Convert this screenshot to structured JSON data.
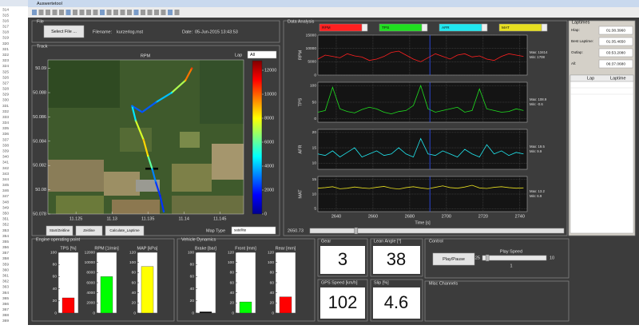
{
  "window": {
    "title": "Auswertetool"
  },
  "editor": {
    "line_numbers": [
      314,
      315,
      316,
      317,
      318,
      319,
      320,
      321,
      322,
      323,
      324,
      325,
      326,
      327,
      328,
      329,
      330,
      331,
      332,
      333,
      334,
      335,
      336,
      337,
      338,
      339,
      340,
      341,
      342,
      343,
      344,
      345,
      346,
      347,
      348,
      349,
      350,
      351,
      352,
      353,
      354,
      355,
      356,
      357,
      358,
      359,
      360,
      361,
      362,
      363,
      364,
      365,
      366,
      367,
      368,
      369
    ]
  },
  "file_panel": {
    "title": "File",
    "button": "Select File ...",
    "filename_label": "Filename:",
    "filename": "kurzerlog.mst",
    "date_label": "Date:",
    "date": "05-Jun-2015 13:43:53"
  },
  "track_panel": {
    "title": "Track",
    "lap_label": "Lap",
    "lap": "All",
    "buttons": [
      "Start/Zeitline",
      "Zeitline",
      "Calculate_Laptime"
    ],
    "map_type_label": "Map Type",
    "map_type": "satellite"
  },
  "laptimes": {
    "title": "Laptimes",
    "rows": [
      {
        "label": "Hlap:",
        "value": "01:38.3960"
      },
      {
        "label": "Best Laptime:",
        "value": "01:35.4650"
      },
      {
        "label": "Outlap:",
        "value": "03:53.2080"
      },
      {
        "label": "All:",
        "value": "06:37.0680"
      }
    ],
    "table_headers": [
      "Lap",
      "Laptime"
    ]
  },
  "displays": [
    {
      "label": "Gear",
      "value": 3
    },
    {
      "label": "Lean Angle [°]",
      "value": 38
    },
    {
      "label": "GPS Speed [km/h]",
      "value": 102
    },
    {
      "label": "Slip [%]",
      "value": 4.6
    }
  ],
  "control": {
    "title": "Control",
    "button": "Play/Pause",
    "speed_label": "Play Speed",
    "speed_min": 0.25,
    "speed_max": 10,
    "speed_value": 1
  },
  "misc": {
    "title": "Misc Channels"
  },
  "chart_data": [
    {
      "type": "scatter",
      "title": "RPM",
      "x": [
        11.1411,
        11.1402,
        11.1383,
        11.1361,
        11.1342,
        11.1328,
        11.1333,
        11.1344,
        11.135,
        11.1356,
        11.1361,
        11.1367,
        11.1372
      ],
      "y": [
        50.09,
        50.089,
        50.088,
        50.0872,
        50.0864,
        50.0869,
        50.0857,
        50.0841,
        50.0828,
        50.0817,
        50.0806,
        50.0795,
        50.0782
      ],
      "rpm": [
        10500,
        9000,
        5000,
        3000,
        2500,
        3000,
        6000,
        9000,
        8000,
        4000,
        2500,
        2000,
        2500
      ],
      "xlim": [
        11.1211,
        11.1483
      ],
      "ylim": [
        50.078,
        50.0907
      ],
      "xticks": [
        11.125,
        11.13,
        11.135,
        11.14,
        11.145
      ],
      "yticks": [
        50.078,
        50.08,
        50.082,
        50.084,
        50.086,
        50.088,
        50.09
      ],
      "colorbar": {
        "lim": [
          0,
          12800
        ],
        "ticks": [
          0,
          2000,
          4000,
          6000,
          8000,
          10000,
          12000
        ]
      }
    },
    {
      "type": "line",
      "title": "Data Analysis",
      "x": [
        2630,
        2634,
        2638,
        2642,
        2646,
        2650,
        2654,
        2658,
        2662,
        2666,
        2670,
        2674,
        2678,
        2682,
        2686,
        2690,
        2694,
        2698,
        2702,
        2706,
        2710,
        2714,
        2718,
        2722,
        2726,
        2730,
        2734,
        2738,
        2742
      ],
      "xlim": [
        2630,
        2744
      ],
      "xticks": [
        2640,
        2660,
        2680,
        2700,
        2720,
        2740
      ],
      "xlabel": "Time [s]",
      "cursor": 2691,
      "slider": 2650.73,
      "panels": [
        {
          "ylabel": "RPM",
          "ylim": [
            0,
            15000
          ],
          "yticks": [
            0,
            5000,
            10000,
            15000
          ],
          "annotations": [
            "Max: 13414",
            "Min: 1708"
          ],
          "series": [
            {
              "name": "RPM",
              "color": "#ff2020",
              "values": [
                6000,
                7500,
                7000,
                6500,
                8000,
                7200,
                6800,
                5500,
                6000,
                7000,
                8500,
                9000,
                7500,
                6000,
                5000,
                6500,
                8000,
                7000,
                6000,
                7500,
                8000,
                6800,
                7200,
                6000,
                5500,
                7000,
                8000,
                7500,
                7000
              ]
            }
          ]
        },
        {
          "ylabel": "TPS",
          "ylim": [
            -10,
            110
          ],
          "yticks": [
            0,
            50,
            100
          ],
          "annotations": [
            "Max: 108.9",
            "Min: -0.6"
          ],
          "series": [
            {
              "name": "TPS",
              "color": "#20e020",
              "values": [
                20,
                25,
                95,
                30,
                22,
                18,
                28,
                35,
                30,
                20,
                15,
                22,
                25,
                40,
                100,
                30,
                20,
                25,
                30,
                35,
                20,
                25,
                90,
                30,
                25,
                20,
                22,
                30,
                25
              ]
            }
          ]
        },
        {
          "ylabel": "AFR",
          "ylim": [
            8,
            21
          ],
          "yticks": [
            10,
            15,
            20
          ],
          "annotations": [
            "Max: 19.5",
            "Min: 9.9"
          ],
          "series": [
            {
              "name": "AFR",
              "color": "#20e8f0",
              "values": [
                13,
                12.5,
                14,
                12,
                13.5,
                15,
                12,
                13,
                14,
                12.5,
                13,
                15,
                13,
                12,
                18,
                13,
                12.5,
                14,
                13,
                12,
                14.5,
                13,
                12,
                16,
                13,
                14,
                12.5,
                13.5,
                13
              ]
            }
          ]
        },
        {
          "ylabel": "MAT",
          "ylim": [
            4,
            16
          ],
          "yticks": [
            5,
            10,
            15
          ],
          "annotations": [
            "Max: 13.2",
            "Min: 6.9"
          ],
          "series": [
            {
              "name": "MAT",
              "color": "#e8e020",
              "values": [
                12,
                12.2,
                12.5,
                11.8,
                12,
                12.4,
                12.1,
                11.9,
                12.3,
                12.6,
                12,
                11.7,
                12.2,
                12.5,
                12.1,
                11.8,
                12.3,
                12.8,
                12.2,
                12,
                12.4,
                13,
                12.1,
                11.9,
                12.3,
                12.5,
                12.2,
                12,
                12.1
              ]
            }
          ]
        }
      ]
    },
    {
      "type": "bar",
      "title": "Engine operating point",
      "panels": [
        {
          "label": "TPS [%]",
          "value": 25,
          "color": "#ff0000",
          "ylim": [
            0,
            100
          ],
          "yticks": [
            0,
            20,
            40,
            60,
            80,
            100
          ]
        },
        {
          "label": "RPM [1/min]",
          "value": 7200,
          "color": "#00ff00",
          "ylim": [
            0,
            12000
          ],
          "yticks": [
            0,
            2000,
            4000,
            6000,
            8000,
            10000,
            12000
          ]
        },
        {
          "label": "MAP [kPa]",
          "value": 92,
          "color": "#ffff00",
          "ylim": [
            0,
            120
          ],
          "yticks": [
            0,
            20,
            40,
            60,
            80,
            100,
            120
          ]
        }
      ]
    },
    {
      "type": "bar",
      "title": "Vehicle Dynamics",
      "panels": [
        {
          "label": "Brake [bar]",
          "value": 2,
          "color": "#000000",
          "ylim": [
            0,
            100
          ],
          "yticks": [
            0,
            20,
            40,
            60,
            80,
            100
          ]
        },
        {
          "label": "Front [mm]",
          "value": 22,
          "color": "#00ff00",
          "ylim": [
            0,
            120
          ],
          "yticks": [
            0,
            20,
            40,
            60,
            80,
            100,
            120
          ]
        },
        {
          "label": "Rear [mm]",
          "value": 32,
          "color": "#ff0000",
          "ylim": [
            0,
            120
          ],
          "yticks": [
            0,
            20,
            40,
            60,
            80,
            100,
            120
          ]
        }
      ]
    }
  ]
}
